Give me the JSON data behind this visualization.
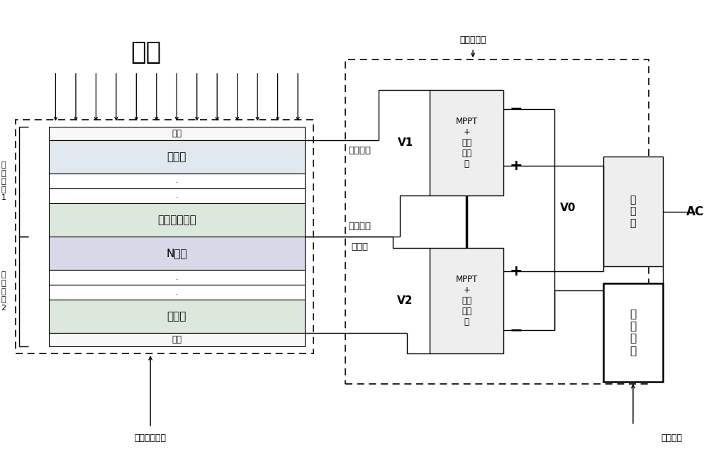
{
  "bg_color": "#ffffff",
  "sunlight_text": "阳光",
  "glass_top": "玻璃",
  "window_layer": "窗口层",
  "trans_back": "透明背电极层",
  "n_layer": "N型层",
  "back_elec": "背电极",
  "glass_bot": "玻璃",
  "dot": ".",
  "cell1_label": "太\n阳\n电\n池\n1",
  "cell2_label": "太\n阳\n电\n池\n2",
  "stacked_label": "叠层电池单元",
  "cathode_label": "阴极栏线",
  "anode_label": "阳极栏线",
  "silver_label": "銀栏线",
  "manager_label": "智能管理器",
  "v1_label": "V1",
  "v2_label": "V2",
  "v0_label": "V0",
  "mppt_label": "MPPT\n+\n电能\n变换\n器",
  "inverter_label": "逆\n变\n器",
  "ac_label": "AC",
  "control_label": "控\n制\n单\n元",
  "control_bottom_label": "控制单元",
  "minus": "−",
  "plus": "+"
}
